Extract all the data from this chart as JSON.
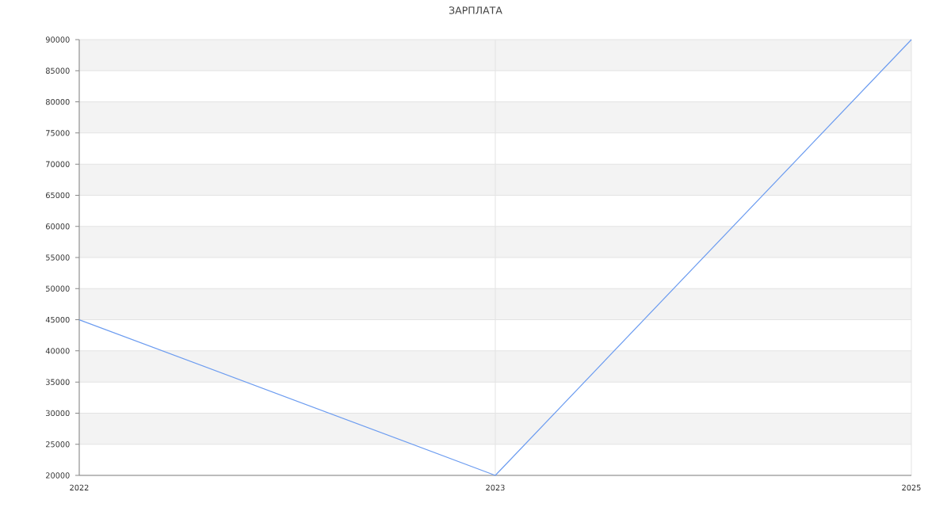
{
  "chart_data": {
    "type": "line",
    "title": "ЗАРПЛАТА",
    "categories": [
      "2022",
      "2023",
      "2025"
    ],
    "values": [
      45000,
      20000,
      90000
    ],
    "color": "#6c9cf0",
    "ylim": [
      20000,
      90000
    ],
    "yticks": [
      20000,
      25000,
      30000,
      35000,
      40000,
      45000,
      50000,
      55000,
      60000,
      65000,
      70000,
      75000,
      80000,
      85000,
      90000
    ],
    "bands": [
      {
        "axis": "y",
        "from": 25000,
        "to": 30000,
        "color": "#f3f3f3"
      },
      {
        "axis": "y",
        "from": 35000,
        "to": 40000,
        "color": "#f3f3f3"
      },
      {
        "axis": "y",
        "from": 45000,
        "to": 50000,
        "color": "#f3f3f3"
      },
      {
        "axis": "y",
        "from": 55000,
        "to": 60000,
        "color": "#f3f3f3"
      },
      {
        "axis": "y",
        "from": 65000,
        "to": 70000,
        "color": "#f3f3f3"
      },
      {
        "axis": "y",
        "from": 75000,
        "to": 80000,
        "color": "#f3f3f3"
      },
      {
        "axis": "y",
        "from": 85000,
        "to": 90000,
        "color": "#f3f3f3"
      }
    ],
    "grid": true
  }
}
